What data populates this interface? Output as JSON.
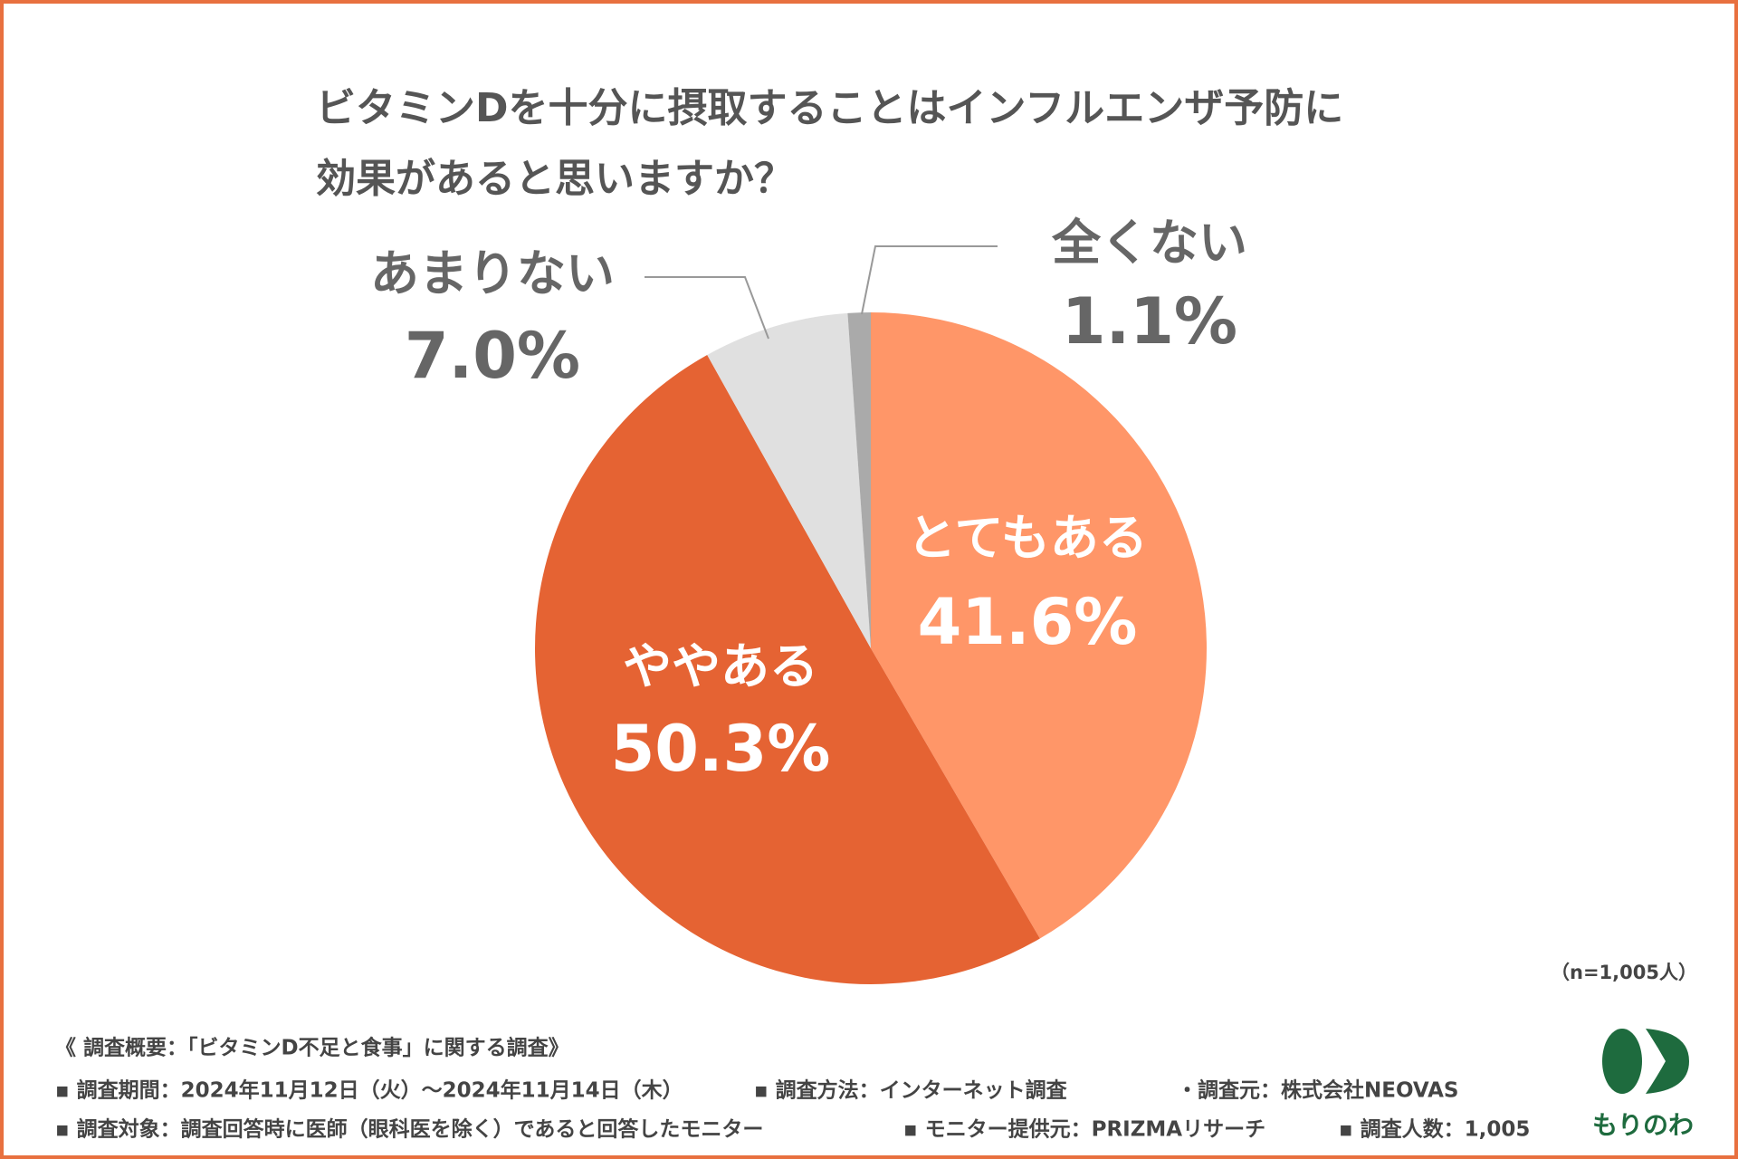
{
  "chart_data": {
    "type": "pie",
    "title": [
      "ビタミンDを十分に摂取することはインフルエンザ予防に",
      "効果があると思いますか？"
    ],
    "categories": [
      "とてもある",
      "ややある",
      "あまりない",
      "全くない"
    ],
    "values": [
      41.6,
      50.3,
      7.0,
      1.1
    ],
    "value_labels": [
      "41.6%",
      "50.3%",
      "7.0%",
      "1.1%"
    ],
    "colors": [
      "#ff9668",
      "#e56333",
      "#e0e0e0",
      "#aaaaaa"
    ],
    "note": "（n=1,005人）"
  },
  "footer": {
    "heading": "《 調査概要：「ビタミンD不足と食事」に関する調査》",
    "rows": [
      [
        "▪ 調査期間：2024年11月12日（火）～2024年11月14日（木）",
        "▪ 調査方法：インターネット調査",
        "・調査元：株式会社NEOVAS"
      ],
      [
        "▪ 調査対象：調査回答時に医師（眼科医を除く）であると回答したモニター",
        "▪ モニター提供元：PRIZMAリサーチ",
        "▪ 調査人数：1,005"
      ]
    ]
  },
  "logo": "もりのわ"
}
